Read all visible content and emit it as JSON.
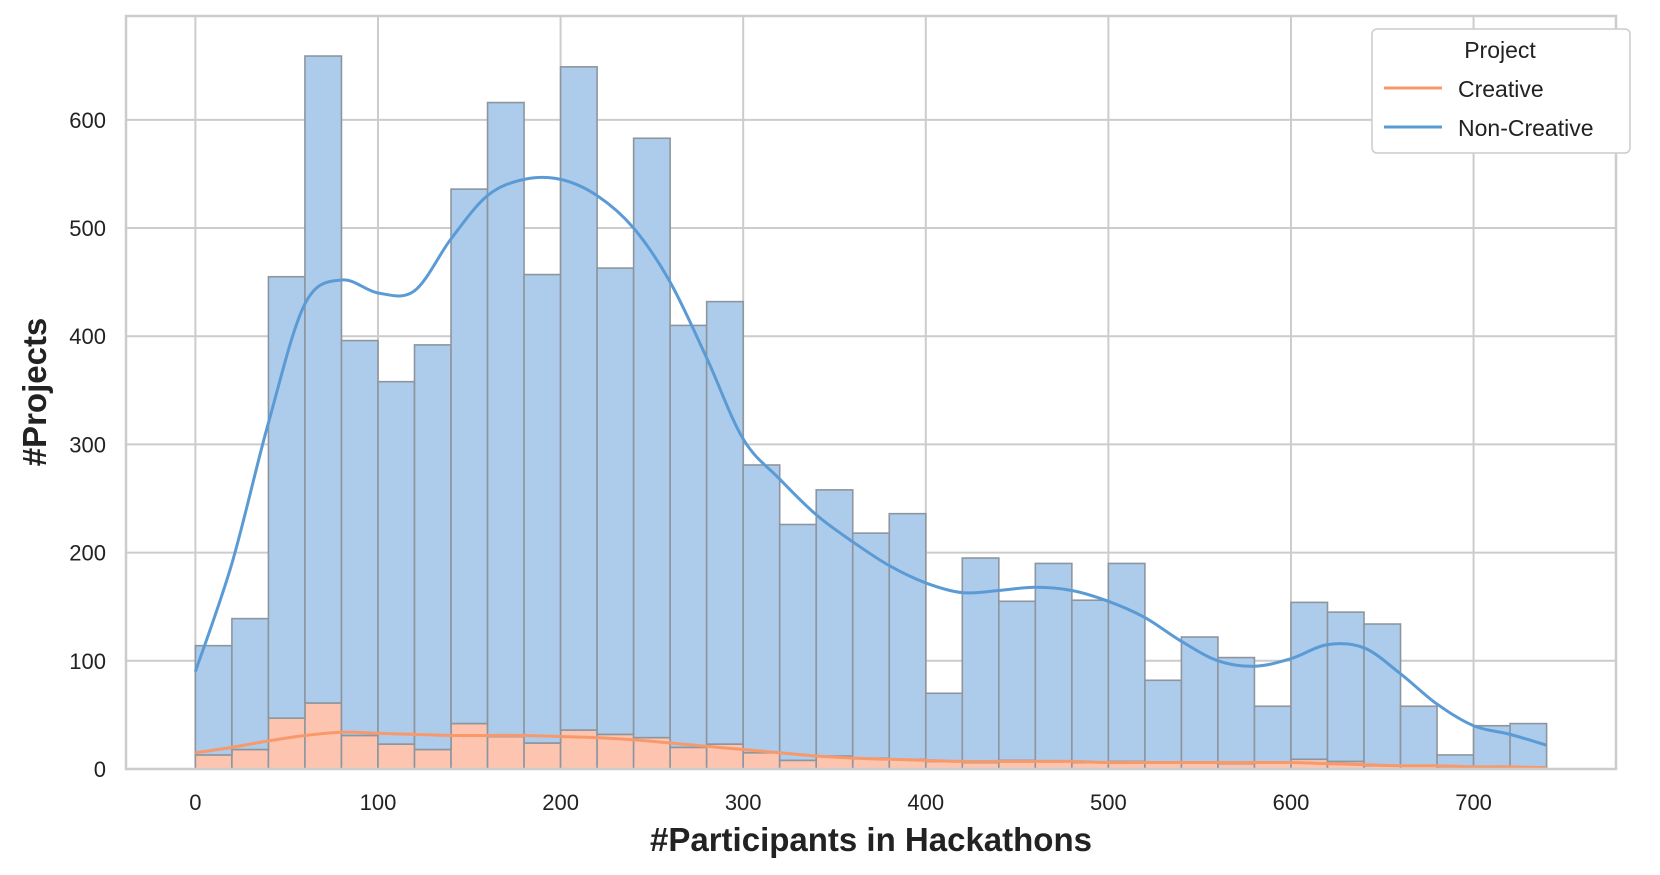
{
  "chart_data": {
    "type": "bar",
    "xlabel": "#Participants in Hackathons",
    "ylabel": "#Projects",
    "xlim": [
      -38,
      778
    ],
    "ylim": [
      0,
      696
    ],
    "xticks": [
      0,
      100,
      200,
      300,
      400,
      500,
      600,
      700
    ],
    "yticks": [
      0,
      100,
      200,
      300,
      400,
      500,
      600
    ],
    "grid": true,
    "bin_edges": [
      0,
      20,
      40,
      60,
      80,
      100,
      120,
      140,
      160,
      180,
      200,
      220,
      240,
      260,
      280,
      300,
      320,
      340,
      360,
      380,
      400,
      420,
      440,
      460,
      480,
      500,
      520,
      540,
      560,
      580,
      600,
      620,
      640,
      660,
      680,
      700,
      720,
      740
    ],
    "stacked": true,
    "legend": {
      "title": "Project",
      "placement": "top-right",
      "entries": [
        {
          "label": "Creative",
          "color": "#f8996b"
        },
        {
          "label": "Non-Creative",
          "color": "#5b9bd5"
        }
      ]
    },
    "series": [
      {
        "name": "Creative",
        "bar_color": "#fdc5b0",
        "line_color": "#f8996b",
        "values": [
          13,
          18,
          47,
          61,
          31,
          23,
          18,
          42,
          30,
          24,
          36,
          32,
          29,
          20,
          23,
          15,
          8,
          12,
          10,
          9,
          7,
          6,
          8,
          7,
          6,
          7,
          6,
          6,
          5,
          6,
          9,
          7,
          3,
          3,
          2,
          2,
          2
        ]
      },
      {
        "name": "Non-Creative",
        "bar_color": "#adcbea",
        "line_color": "#5b9bd5",
        "totals": [
          114,
          139,
          455,
          659,
          396,
          358,
          392,
          536,
          616,
          457,
          649,
          463,
          583,
          410,
          432,
          281,
          226,
          258,
          218,
          236,
          70,
          195,
          155,
          190,
          156,
          190,
          82,
          122,
          103,
          58,
          154,
          145,
          134,
          58,
          13,
          40,
          42
        ]
      }
    ],
    "kde": {
      "Creative": {
        "x": [
          0,
          20,
          40,
          60,
          80,
          100,
          120,
          140,
          160,
          180,
          200,
          220,
          240,
          260,
          280,
          300,
          320,
          340,
          360,
          380,
          400,
          420,
          440,
          460,
          480,
          500,
          520,
          540,
          560,
          580,
          600,
          620,
          640,
          660,
          680,
          700,
          720,
          740
        ],
        "y": [
          15,
          20,
          26,
          31,
          34,
          33,
          32,
          31,
          31,
          31,
          30,
          29,
          27,
          24,
          21,
          18,
          15,
          12,
          10,
          9,
          8,
          7,
          7,
          7,
          7,
          6,
          6,
          6,
          6,
          6,
          6,
          5,
          4,
          3,
          3,
          2,
          2,
          1
        ]
      },
      "Non-Creative": {
        "x": [
          0,
          20,
          40,
          60,
          80,
          100,
          120,
          140,
          160,
          180,
          200,
          220,
          240,
          260,
          280,
          300,
          320,
          340,
          360,
          380,
          400,
          420,
          440,
          460,
          480,
          500,
          520,
          540,
          560,
          580,
          600,
          620,
          640,
          660,
          680,
          700,
          720,
          740
        ],
        "y": [
          90,
          190,
          320,
          430,
          452,
          440,
          442,
          490,
          530,
          545,
          545,
          530,
          500,
          450,
          380,
          305,
          268,
          235,
          210,
          188,
          172,
          163,
          165,
          168,
          165,
          155,
          140,
          118,
          100,
          95,
          102,
          115,
          112,
          88,
          60,
          40,
          32,
          22
        ]
      }
    }
  }
}
